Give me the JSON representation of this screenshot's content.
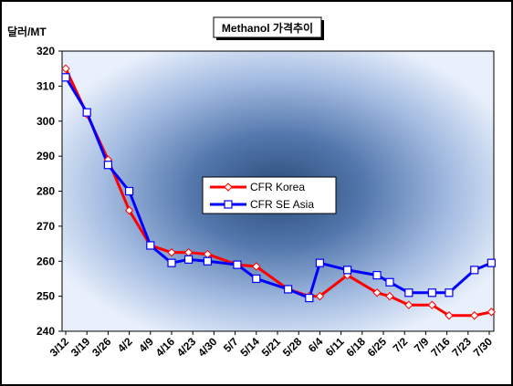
{
  "chart_data": {
    "type": "line",
    "title": "Methanol 가격추이",
    "ylabel": "달러/MT",
    "xlabel": "",
    "ylim": [
      240,
      320
    ],
    "yticks": [
      240,
      250,
      260,
      270,
      280,
      290,
      300,
      310,
      320
    ],
    "grid": false,
    "legend_position": "center",
    "categories": [
      "3/12",
      "3/19",
      "3/26",
      "4/2",
      "4/9",
      "4/16",
      "4/23",
      "4/30",
      "5/7",
      "5/14",
      "5/21",
      "5/28",
      "6/4",
      "6/11",
      "6/18",
      "6/25",
      "7/2",
      "7/9",
      "7/16",
      "7/23",
      "7/30"
    ],
    "x_positions": [
      0,
      1,
      2,
      3,
      4,
      5,
      6,
      7,
      8,
      9,
      10,
      11,
      12,
      13,
      14,
      15,
      16,
      17,
      18,
      19,
      20
    ],
    "series": [
      {
        "name": "CFR Korea",
        "color": "#ff0000",
        "marker": "diamond",
        "marker_x": [
          0,
          1,
          2,
          3,
          4,
          5,
          5.8,
          6.7,
          8.1,
          9,
          10.5,
          11.5,
          12,
          13.3,
          14.7,
          15.3,
          16.2,
          17.3,
          18.1,
          19.3,
          20.1
        ],
        "values": [
          315,
          302,
          289,
          274.5,
          264.5,
          262.5,
          262.5,
          262,
          259,
          258.5,
          252,
          250,
          250,
          256,
          251,
          250,
          247.5,
          247.5,
          244.5,
          244.5,
          245.5
        ]
      },
      {
        "name": "CFR SE Asia",
        "color": "#0000ff",
        "marker": "square",
        "marker_x": [
          0,
          1,
          2,
          3,
          4,
          5,
          5.8,
          6.7,
          8.1,
          9,
          10.5,
          11.5,
          12,
          13.3,
          14.7,
          15.3,
          16.2,
          17.3,
          18.1,
          19.3,
          20.1
        ],
        "values": [
          312.5,
          302.5,
          287.5,
          280,
          264.5,
          259.5,
          260.5,
          260,
          259,
          255,
          252,
          249.5,
          259.5,
          257.5,
          256,
          254,
          251,
          251,
          251,
          257.5,
          259.5
        ]
      }
    ]
  }
}
